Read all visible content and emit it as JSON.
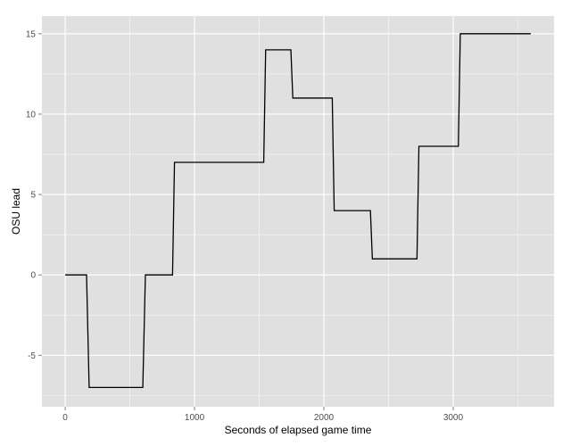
{
  "chart_data": {
    "type": "line",
    "title": "",
    "xlabel": "Seconds of elapsed game time",
    "ylabel": "OSU lead",
    "xlim": [
      -180,
      3780
    ],
    "ylim": [
      -8.2,
      16.1
    ],
    "xticks": [
      0,
      1000,
      2000,
      3000
    ],
    "yticks": [
      -5,
      0,
      5,
      10,
      15
    ],
    "grid": true,
    "background": "#e0e0e0",
    "gridline_color": "#ffffff",
    "line_color": "#000000",
    "series": [
      {
        "x": [
          0,
          165,
          185,
          600,
          620,
          830,
          845,
          1535,
          1550,
          1745,
          1760,
          2065,
          2080,
          2360,
          2375,
          2720,
          2735,
          3040,
          3055,
          3600
        ],
        "y": [
          0,
          0,
          -7,
          -7,
          0,
          0,
          7,
          7,
          14,
          14,
          11,
          11,
          4,
          4,
          1,
          1,
          8,
          8,
          15,
          15
        ]
      }
    ]
  }
}
